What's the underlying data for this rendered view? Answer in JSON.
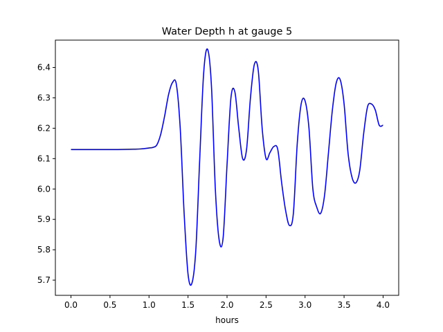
{
  "chart_data": {
    "type": "line",
    "title": "Water Depth h at gauge 5",
    "xlabel": "hours",
    "ylabel": "",
    "xlim": [
      -0.2,
      4.2
    ],
    "ylim": [
      5.65,
      6.49
    ],
    "xticks": [
      "0.0",
      "0.5",
      "1.0",
      "1.5",
      "2.0",
      "2.5",
      "3.0",
      "3.5",
      "4.0"
    ],
    "yticks": [
      "5.7",
      "5.8",
      "5.9",
      "6.0",
      "6.1",
      "6.2",
      "6.3",
      "6.4"
    ],
    "grid": false,
    "legend": "none",
    "series": [
      {
        "color": "#0000ff",
        "x": [
          0.0,
          0.2,
          0.4,
          0.6,
          0.8,
          0.9,
          1.0,
          1.05,
          1.1,
          1.15,
          1.2,
          1.25,
          1.3,
          1.35,
          1.4,
          1.45,
          1.5,
          1.55,
          1.6,
          1.65,
          1.7,
          1.75,
          1.8,
          1.85,
          1.9,
          1.95,
          2.0,
          2.05,
          2.1,
          2.15,
          2.2,
          2.25,
          2.3,
          2.35,
          2.4,
          2.45,
          2.5,
          2.55,
          2.6,
          2.65,
          2.7,
          2.75,
          2.8,
          2.85,
          2.9,
          2.95,
          3.0,
          3.05,
          3.1,
          3.15,
          3.2,
          3.25,
          3.3,
          3.35,
          3.4,
          3.45,
          3.5,
          3.55,
          3.6,
          3.65,
          3.7,
          3.75,
          3.8,
          3.85,
          3.9,
          3.95,
          4.0
        ],
        "y": [
          6.13,
          6.13,
          6.13,
          6.13,
          6.131,
          6.132,
          6.135,
          6.137,
          6.145,
          6.18,
          6.24,
          6.31,
          6.35,
          6.345,
          6.2,
          5.92,
          5.72,
          5.69,
          5.8,
          6.1,
          6.38,
          6.46,
          6.34,
          6.0,
          5.83,
          5.84,
          6.08,
          6.3,
          6.32,
          6.2,
          6.1,
          6.13,
          6.3,
          6.41,
          6.39,
          6.2,
          6.1,
          6.12,
          6.14,
          6.13,
          6.02,
          5.93,
          5.88,
          5.92,
          6.15,
          6.28,
          6.29,
          6.2,
          6.0,
          5.94,
          5.92,
          5.98,
          6.12,
          6.26,
          6.35,
          6.36,
          6.28,
          6.12,
          6.04,
          6.02,
          6.06,
          6.18,
          6.27,
          6.28,
          6.26,
          6.21,
          6.21
        ]
      }
    ]
  }
}
